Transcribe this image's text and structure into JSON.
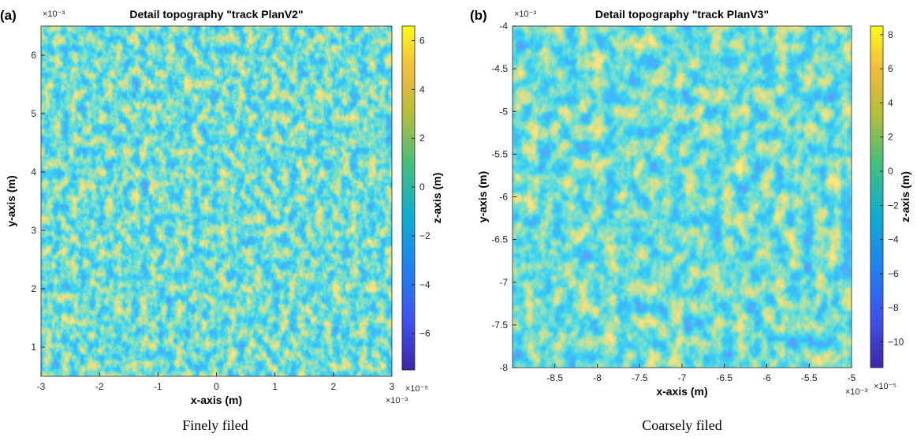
{
  "chart_data": [
    {
      "type": "heatmap",
      "panel_label": "(a)",
      "title": "Detail topography \"track PlanV2\"",
      "x_label": "x-axis (m)",
      "y_label": "y-axis (m)",
      "colorbar_label": "z-axis (m)",
      "x_exponent": "×10⁻³",
      "y_exponent": "×10⁻³",
      "colorbar_exponent": "×10⁻⁵",
      "xlim": [
        -3,
        3
      ],
      "xticks": [
        -3,
        -2,
        -1,
        0,
        1,
        2,
        3
      ],
      "ylim": [
        0.5,
        6.5
      ],
      "yticks": [
        1,
        2,
        3,
        4,
        5,
        6
      ],
      "clim": [
        -7.5,
        6.6
      ],
      "cticks": [
        {
          "value": -6,
          "label": "−6"
        },
        {
          "value": -4,
          "label": "−4"
        },
        {
          "value": -2,
          "label": "−2"
        },
        0,
        2,
        4,
        6
      ],
      "colormap": "parula",
      "caption": "Finely filed"
    },
    {
      "type": "heatmap",
      "panel_label": "(b)",
      "title": "Detail topography \"track PlanV3\"",
      "x_label": "x-axis (m)",
      "y_label": "y-axis (m)",
      "colorbar_label": "z-axis (m)",
      "x_exponent": "×10⁻³",
      "y_exponent": "×10⁻³",
      "colorbar_exponent": "×10⁻⁵",
      "xlim": [
        -9,
        -5
      ],
      "xticks": [
        -8.5,
        -8,
        -7.5,
        -7,
        -6.5,
        -6,
        -5.5,
        -5
      ],
      "ylim": [
        -8,
        -4
      ],
      "yticks": [
        -8,
        -7.5,
        -7,
        -6.5,
        -6,
        -5.5,
        -5,
        -4.5,
        -4
      ],
      "clim": [
        -11.5,
        8.5
      ],
      "cticks": [
        {
          "value": -10,
          "label": "−10"
        },
        {
          "value": -8,
          "label": "−8"
        },
        {
          "value": -6,
          "label": "−6"
        },
        {
          "value": -4,
          "label": "−4"
        },
        {
          "value": -2,
          "label": "−2"
        },
        0,
        2,
        4,
        6,
        8
      ],
      "colormap": "parula",
      "caption": "Coarsely filed"
    }
  ]
}
